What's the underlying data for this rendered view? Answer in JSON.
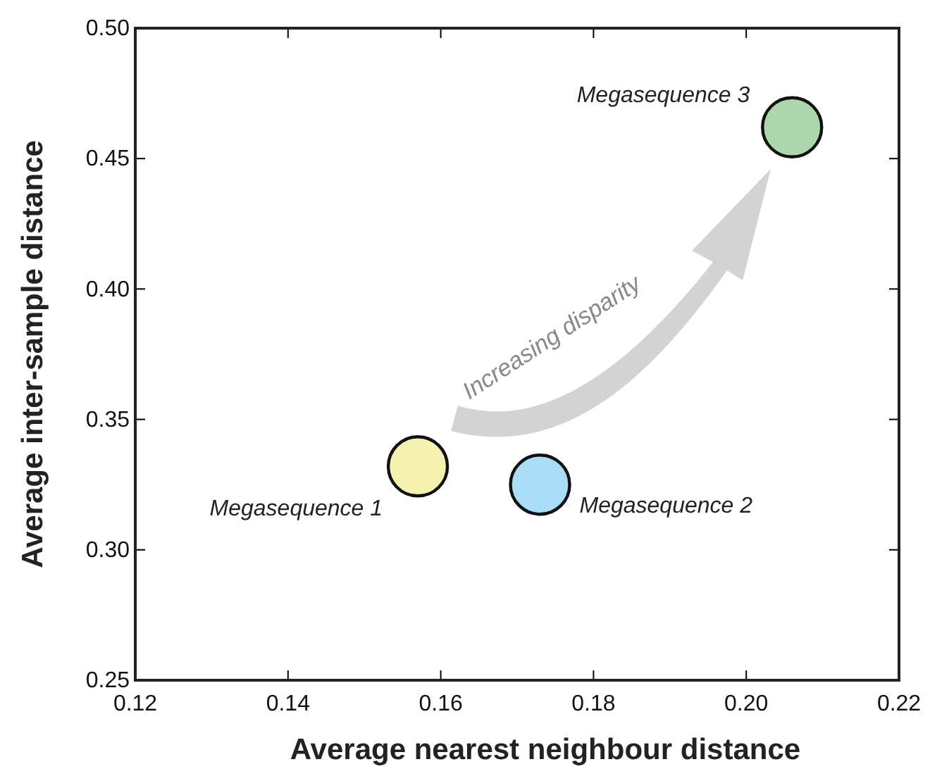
{
  "chart_data": {
    "type": "scatter",
    "xlabel": "Average nearest neighbour distance",
    "ylabel": "Average inter-sample distance",
    "xlim": [
      0.12,
      0.22
    ],
    "xticks": [
      {
        "value": 0.12,
        "label": "0.12"
      },
      {
        "value": 0.14,
        "label": "0.14"
      },
      {
        "value": 0.16,
        "label": "0.16"
      },
      {
        "value": 0.18,
        "label": "0.18"
      },
      {
        "value": 0.2,
        "label": "0.20"
      },
      {
        "value": 0.22,
        "label": "0.22"
      }
    ],
    "ylim": [
      0.25,
      0.5
    ],
    "yticks": [
      {
        "value": 0.25,
        "label": "0.25"
      },
      {
        "value": 0.3,
        "label": "0.30"
      },
      {
        "value": 0.35,
        "label": "0.35"
      },
      {
        "value": 0.4,
        "label": "0.40"
      },
      {
        "value": 0.45,
        "label": "0.45"
      },
      {
        "value": 0.5,
        "label": "0.50"
      }
    ],
    "marker": "circle",
    "grid": false,
    "series": [
      {
        "name": "Megasequence 1",
        "color": "#f5f2b0",
        "x": [
          0.157
        ],
        "values": [
          0.332
        ]
      },
      {
        "name": "Megasequence 2",
        "color": "#aadcf5",
        "x": [
          0.173
        ],
        "values": [
          0.325
        ]
      },
      {
        "name": "Megasequence 3",
        "color": "#acd6ab",
        "x": [
          0.206
        ],
        "values": [
          0.462
        ]
      }
    ],
    "annotations": [
      "Increasing disparity"
    ]
  }
}
